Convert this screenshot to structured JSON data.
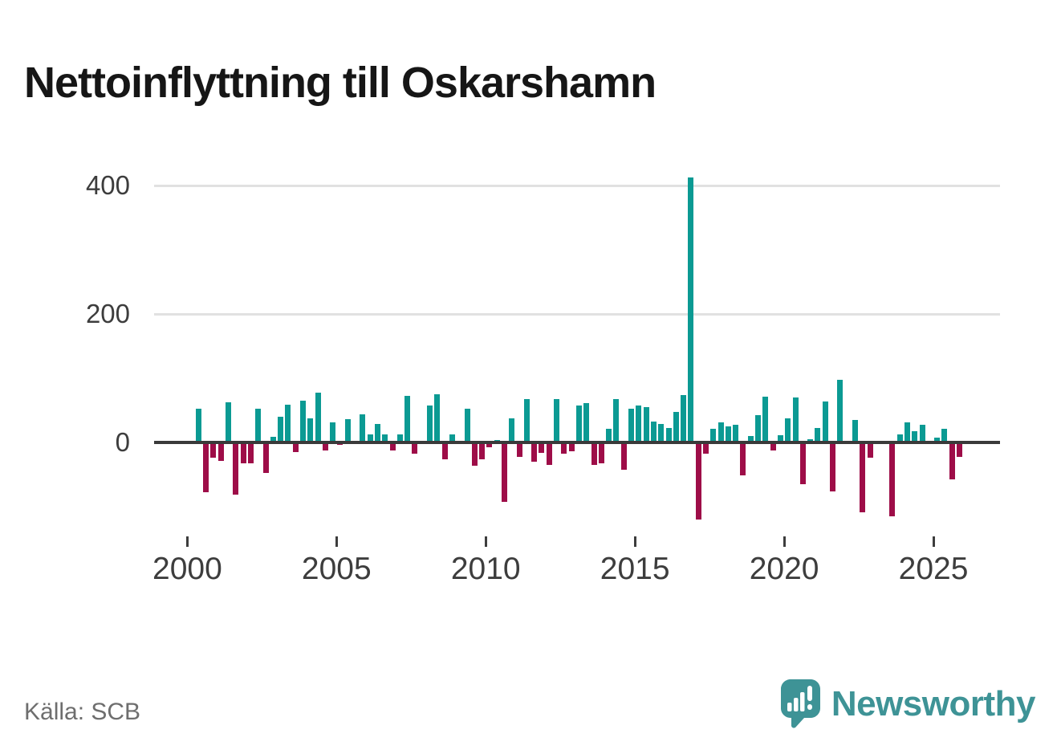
{
  "title": "Nettoinflyttning till Oskarshamn",
  "source": "Källa: SCB",
  "branding": {
    "name": "Newsworthy",
    "logo_icon": "speech-bubble-bar-chart-exclamation",
    "color": "#3e9396"
  },
  "colors": {
    "positive_bar": "#0b9a93",
    "negative_bar": "#9e0d48",
    "grid": "#e1e1e1",
    "zero_axis": "#3a3a3a",
    "axis_text": "#3d3d3d",
    "title_text": "#161616",
    "source_text": "#6e6e6e",
    "background": "#ffffff"
  },
  "chart_data": {
    "type": "bar",
    "title": "Nettoinflyttning till Oskarshamn",
    "xlabel": "",
    "ylabel": "",
    "x_range": "2000Q1–2025Q4 (quarterly)",
    "yticks": [
      0,
      200,
      400
    ],
    "xticks": [
      2000,
      2005,
      2010,
      2015,
      2020,
      2025
    ],
    "ylim": [
      -150,
      450
    ],
    "grid": "horizontal",
    "legend": "none",
    "x": [
      "2000Q1",
      "2000Q2",
      "2000Q3",
      "2000Q4",
      "2001Q1",
      "2001Q2",
      "2001Q3",
      "2001Q4",
      "2002Q1",
      "2002Q2",
      "2002Q3",
      "2002Q4",
      "2003Q1",
      "2003Q2",
      "2003Q3",
      "2003Q4",
      "2004Q1",
      "2004Q2",
      "2004Q3",
      "2004Q4",
      "2005Q1",
      "2005Q2",
      "2005Q3",
      "2005Q4",
      "2006Q1",
      "2006Q2",
      "2006Q3",
      "2006Q4",
      "2007Q1",
      "2007Q2",
      "2007Q3",
      "2007Q4",
      "2008Q1",
      "2008Q2",
      "2008Q3",
      "2008Q4",
      "2009Q1",
      "2009Q2",
      "2009Q3",
      "2009Q4",
      "2010Q1",
      "2010Q2",
      "2010Q3",
      "2010Q4",
      "2011Q1",
      "2011Q2",
      "2011Q3",
      "2011Q4",
      "2012Q1",
      "2012Q2",
      "2012Q3",
      "2012Q4",
      "2013Q1",
      "2013Q2",
      "2013Q3",
      "2013Q4",
      "2014Q1",
      "2014Q2",
      "2014Q3",
      "2014Q4",
      "2015Q1",
      "2015Q2",
      "2015Q3",
      "2015Q4",
      "2016Q1",
      "2016Q2",
      "2016Q3",
      "2016Q4",
      "2017Q1",
      "2017Q2",
      "2017Q3",
      "2017Q4",
      "2018Q1",
      "2018Q2",
      "2018Q3",
      "2018Q4",
      "2019Q1",
      "2019Q2",
      "2019Q3",
      "2019Q4",
      "2020Q1",
      "2020Q2",
      "2020Q3",
      "2020Q4",
      "2021Q1",
      "2021Q2",
      "2021Q3",
      "2021Q4",
      "2022Q1",
      "2022Q2",
      "2022Q3",
      "2022Q4",
      "2023Q1",
      "2023Q2",
      "2023Q3",
      "2023Q4",
      "2024Q1",
      "2024Q2",
      "2024Q3",
      "2024Q4",
      "2025Q1",
      "2025Q2",
      "2025Q3",
      "2025Q4"
    ],
    "values": [
      3,
      53,
      -78,
      -24,
      -29,
      62,
      -81,
      -32,
      -33,
      53,
      -47,
      9,
      40,
      59,
      -15,
      65,
      38,
      78,
      -12,
      31,
      -4,
      36,
      2,
      44,
      12,
      29,
      12,
      -13,
      12,
      73,
      -18,
      2,
      58,
      75,
      -26,
      12,
      2,
      53,
      -36,
      -26,
      -8,
      4,
      -93,
      37,
      -22,
      68,
      -30,
      -16,
      -35,
      68,
      -17,
      -14,
      58,
      61,
      -35,
      -33,
      21,
      68,
      -43,
      53,
      58,
      55,
      32,
      29,
      22,
      47,
      74,
      412,
      -120,
      -17,
      21,
      31,
      25,
      27,
      -51,
      10,
      43,
      71,
      -13,
      11,
      38,
      70,
      -65,
      5,
      22,
      64,
      -76,
      97,
      2,
      35,
      -109,
      -24,
      3,
      -2,
      -115,
      12,
      31,
      17,
      28,
      1,
      8,
      21,
      -57,
      -22
    ]
  }
}
